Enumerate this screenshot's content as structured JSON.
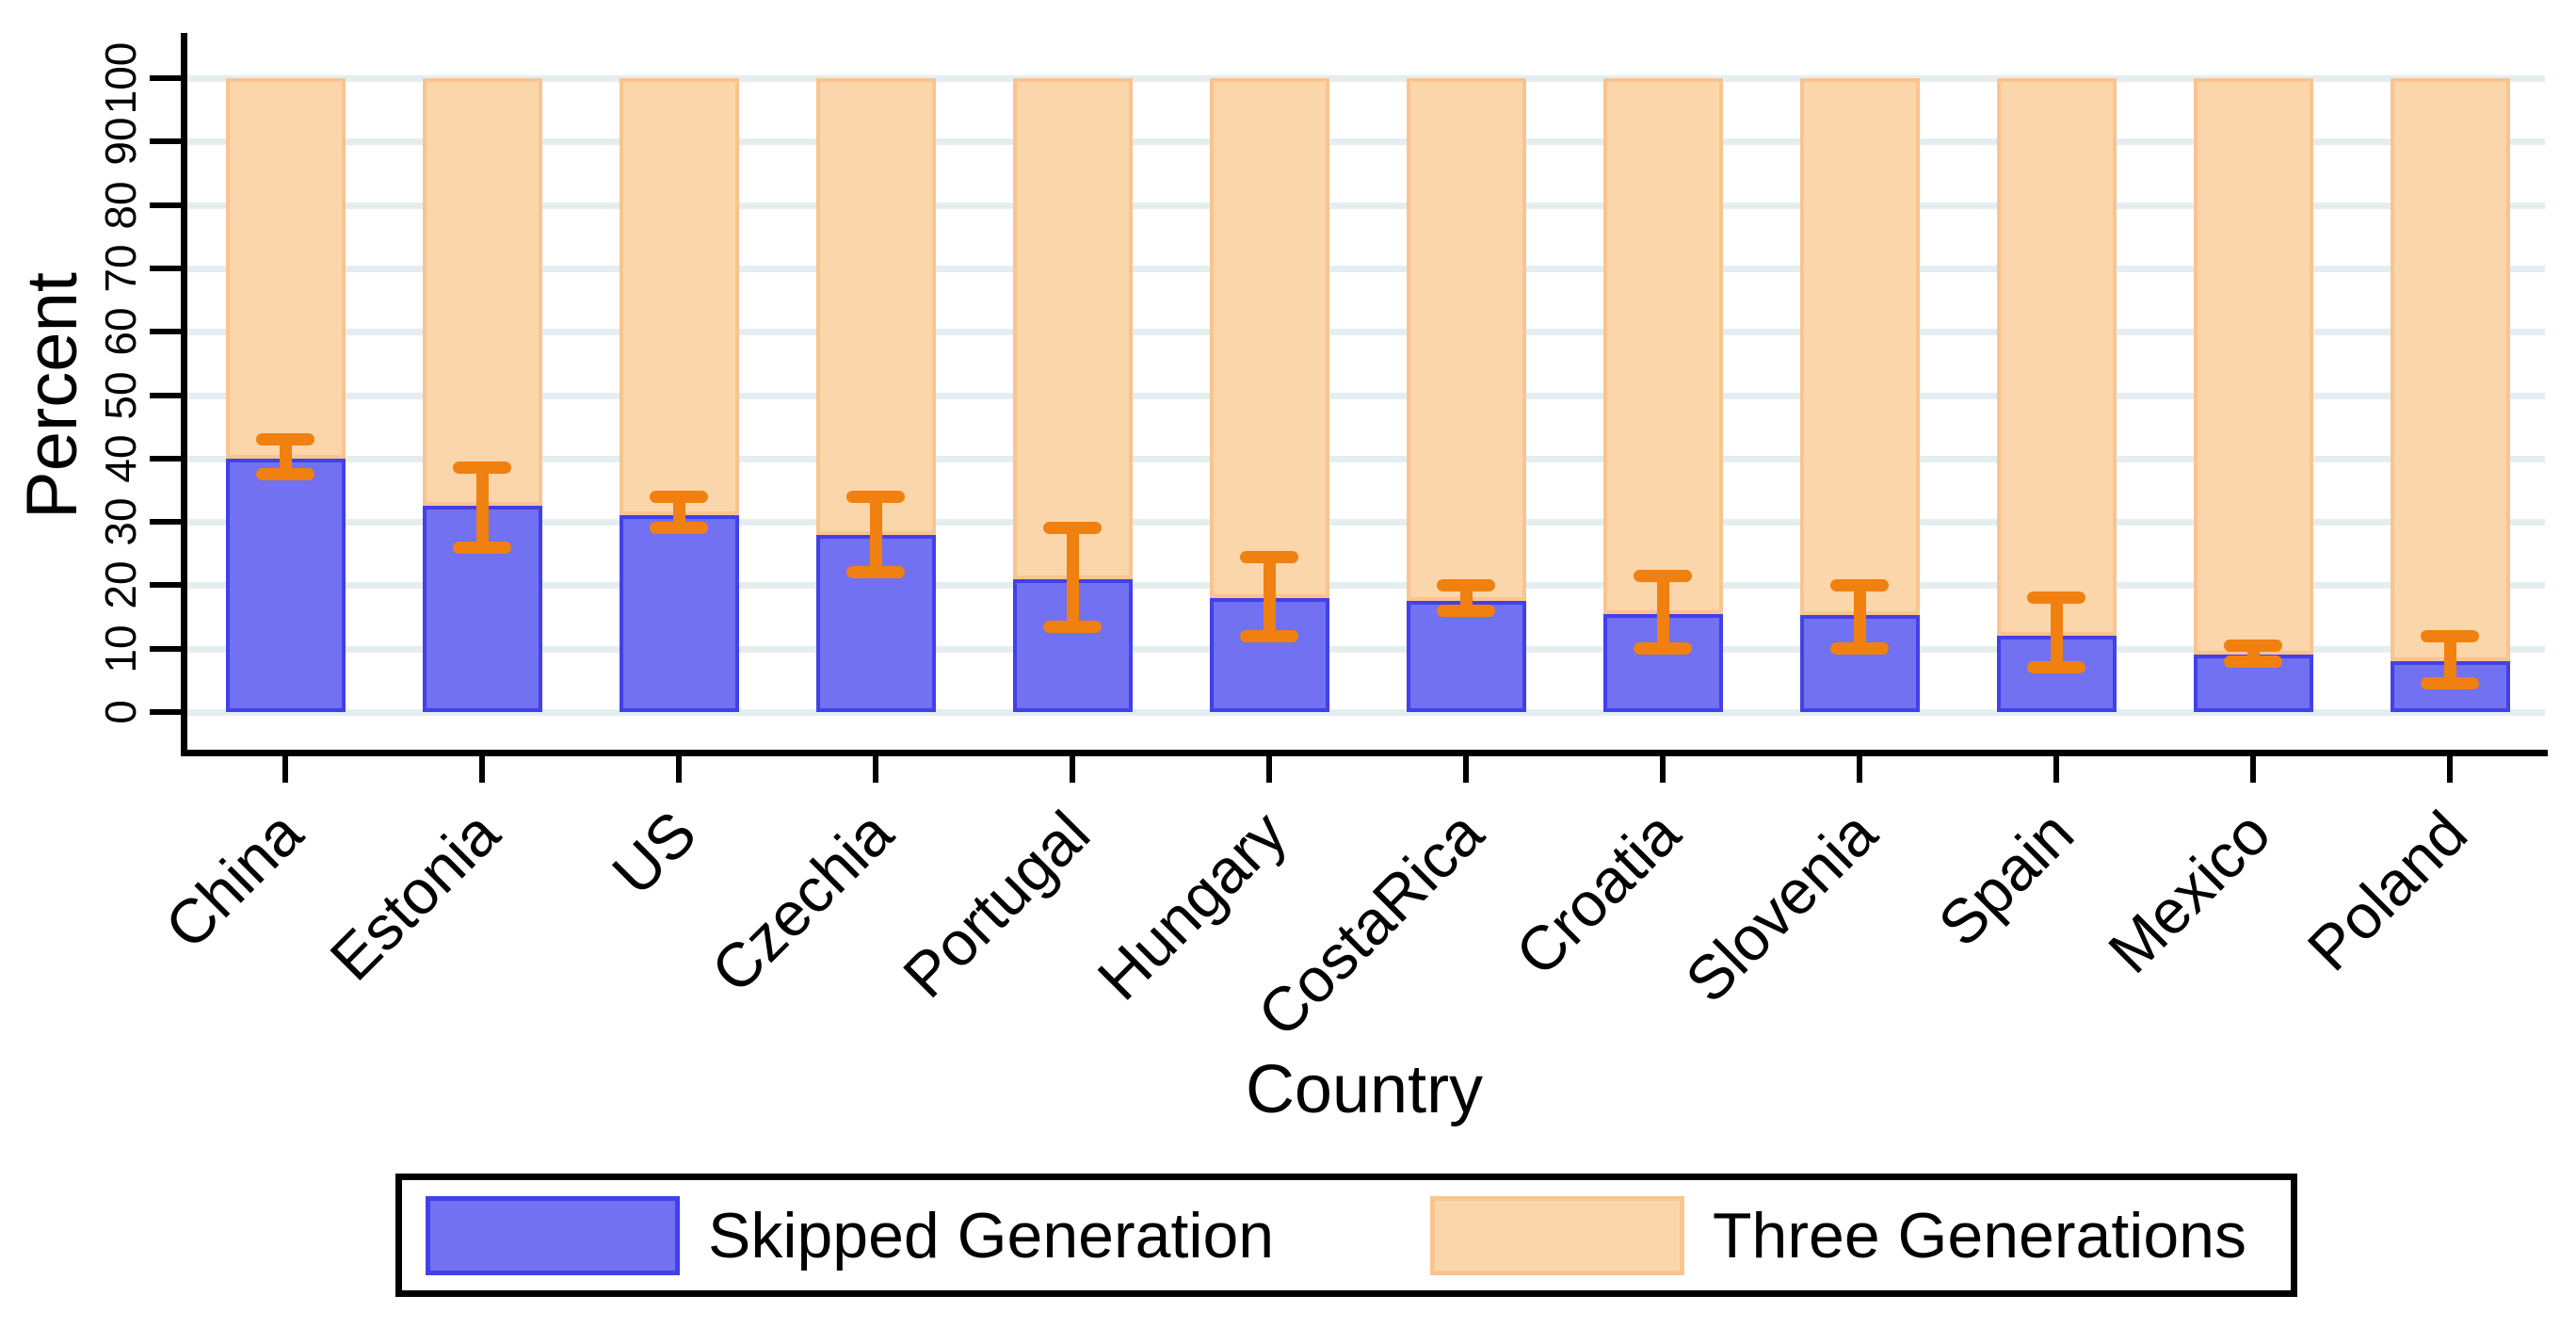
{
  "chart_data": {
    "type": "bar",
    "stacked": true,
    "title": "",
    "xlabel": "Country",
    "ylabel": "Percent",
    "ylim": [
      0,
      100
    ],
    "yticks": [
      0,
      10,
      20,
      30,
      40,
      50,
      60,
      70,
      80,
      90,
      100
    ],
    "grid": "horizontal",
    "legend_position": "bottom",
    "categories": [
      "China",
      "Estonia",
      "US",
      "Czechia",
      "Portugal",
      "Hungary",
      "CostaRica",
      "Croatia",
      "Slovenia",
      "Spain",
      "Mexico",
      "Poland"
    ],
    "series": [
      {
        "name": "Skipped Generation",
        "color": "#7171F2",
        "border_color": "#4240E9",
        "values": [
          40,
          32.5,
          31,
          28,
          21,
          18,
          17.5,
          15.5,
          15.3,
          12,
          9,
          8
        ]
      },
      {
        "name": "Three Generations",
        "color": "#FCD6AB",
        "border_color": "#F9C48F",
        "values": [
          60,
          67.5,
          69,
          72,
          79,
          82,
          82.5,
          84.5,
          84.7,
          88,
          91,
          92
        ]
      }
    ],
    "error_bars": {
      "on_series": "Skipped Generation",
      "color": "#F08010",
      "low": [
        37.5,
        26,
        29,
        22,
        13.5,
        12,
        16,
        10,
        10,
        7,
        8,
        4.5
      ],
      "high": [
        43,
        38.5,
        34,
        34,
        29,
        24.5,
        20,
        21.5,
        20,
        18,
        10.5,
        12
      ]
    }
  },
  "colors": {
    "background": "#FFFFFF",
    "gridline": "#E4EEF0",
    "axis": "#000000",
    "text": "#000000"
  }
}
